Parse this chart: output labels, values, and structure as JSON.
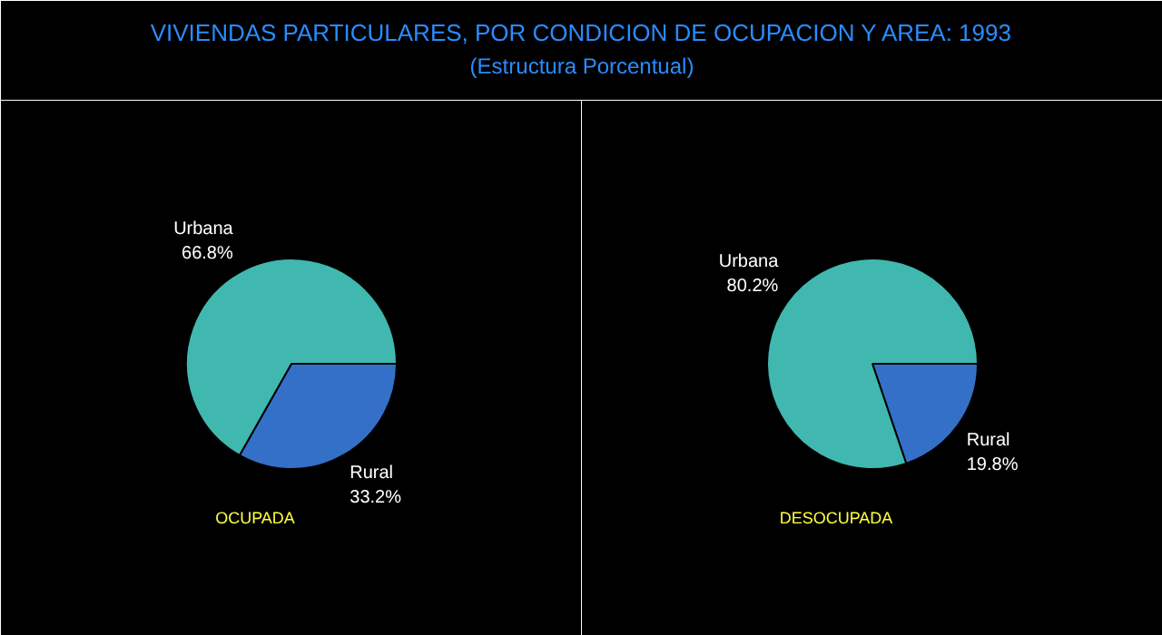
{
  "chart_data": [
    {
      "type": "pie",
      "title": "VIVIENDAS PARTICULARES, POR CONDICION DE OCUPACION Y AREA: 1993",
      "subtitle": "(Estructura Porcentual)",
      "xlabel": "OCUPADA",
      "categories": [
        "Rural",
        "Urbana"
      ],
      "values": [
        33.2,
        66.8
      ],
      "value_labels": [
        "33.2%",
        "66.8%"
      ],
      "colors": [
        "#3470c8",
        "#40b8b0"
      ]
    },
    {
      "type": "pie",
      "xlabel": "DESOCUPADA",
      "categories": [
        "Rural",
        "Urbana"
      ],
      "values": [
        19.8,
        80.2
      ],
      "value_labels": [
        "19.8%",
        "80.2%"
      ],
      "colors": [
        "#3470c8",
        "#40b8b0"
      ]
    }
  ]
}
